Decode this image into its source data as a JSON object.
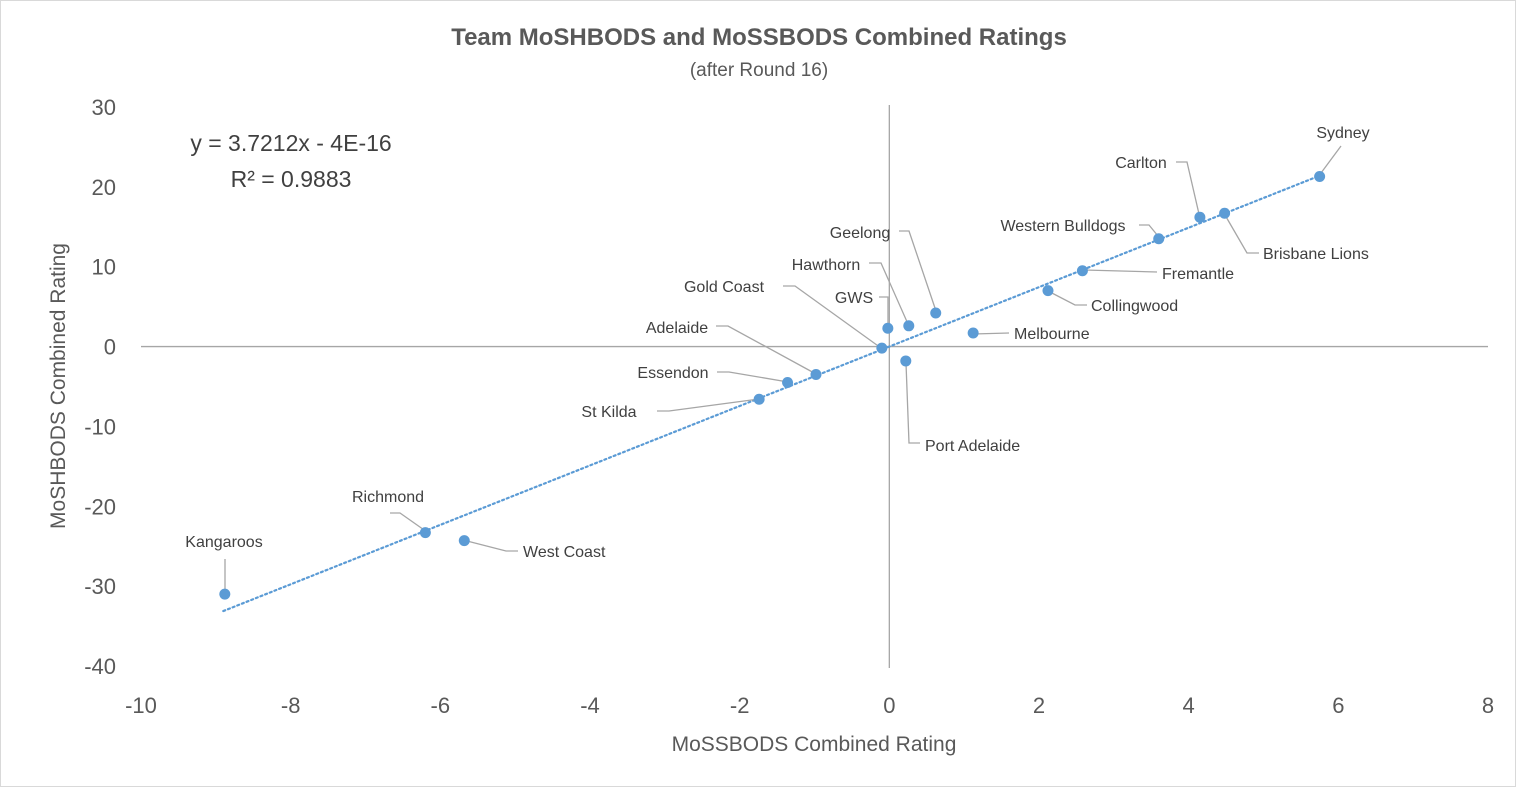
{
  "chart_data": {
    "type": "scatter",
    "title": "Team MoSHBODS and MoSSBODS Combined Ratings",
    "subtitle": "(after Round 16)",
    "xlabel": "MoSSBODS Combined Rating",
    "ylabel": "MoSHBODS Combined Rating",
    "xlim": [
      -10,
      8
    ],
    "ylim": [
      -40,
      30
    ],
    "x_ticks": [
      -10,
      -8,
      -6,
      -4,
      -2,
      0,
      2,
      4,
      6,
      8
    ],
    "y_ticks": [
      30,
      20,
      10,
      0,
      -10,
      -20,
      -30,
      -40
    ],
    "grid": false,
    "marker_color": "#5b9bd5",
    "trendline": {
      "type": "linear",
      "color": "#5b9bd5",
      "style": "dotted",
      "slope": 3.7212,
      "intercept": 0,
      "x_range": [
        -8.9,
        5.75
      ],
      "equation": "y = 3.7212x - 4E-16",
      "r_squared": "R² = 0.9883"
    },
    "points": [
      {
        "label": "Sydney",
        "x": 5.75,
        "y": 21.3
      },
      {
        "label": "Carlton",
        "x": 4.15,
        "y": 16.2
      },
      {
        "label": "Brisbane Lions",
        "x": 4.48,
        "y": 16.7
      },
      {
        "label": "Western Bulldogs",
        "x": 3.6,
        "y": 13.5
      },
      {
        "label": "Fremantle",
        "x": 2.58,
        "y": 9.5
      },
      {
        "label": "Collingwood",
        "x": 2.12,
        "y": 7.0
      },
      {
        "label": "Geelong",
        "x": 0.62,
        "y": 4.2
      },
      {
        "label": "Hawthorn",
        "x": 0.26,
        "y": 2.6
      },
      {
        "label": "GWS",
        "x": -0.02,
        "y": 2.3
      },
      {
        "label": "Melbourne",
        "x": 1.12,
        "y": 1.7
      },
      {
        "label": "Gold Coast",
        "x": -0.1,
        "y": -0.2
      },
      {
        "label": "Port Adelaide",
        "x": 0.22,
        "y": -1.8
      },
      {
        "label": "Adelaide",
        "x": -0.98,
        "y": -3.5
      },
      {
        "label": "Essendon",
        "x": -1.36,
        "y": -4.5
      },
      {
        "label": "St Kilda",
        "x": -1.74,
        "y": -6.6
      },
      {
        "label": "Richmond",
        "x": -6.2,
        "y": -23.3
      },
      {
        "label": "West Coast",
        "x": -5.68,
        "y": -24.3
      },
      {
        "label": "Kangaroos",
        "x": -8.88,
        "y": -31.0
      }
    ]
  }
}
